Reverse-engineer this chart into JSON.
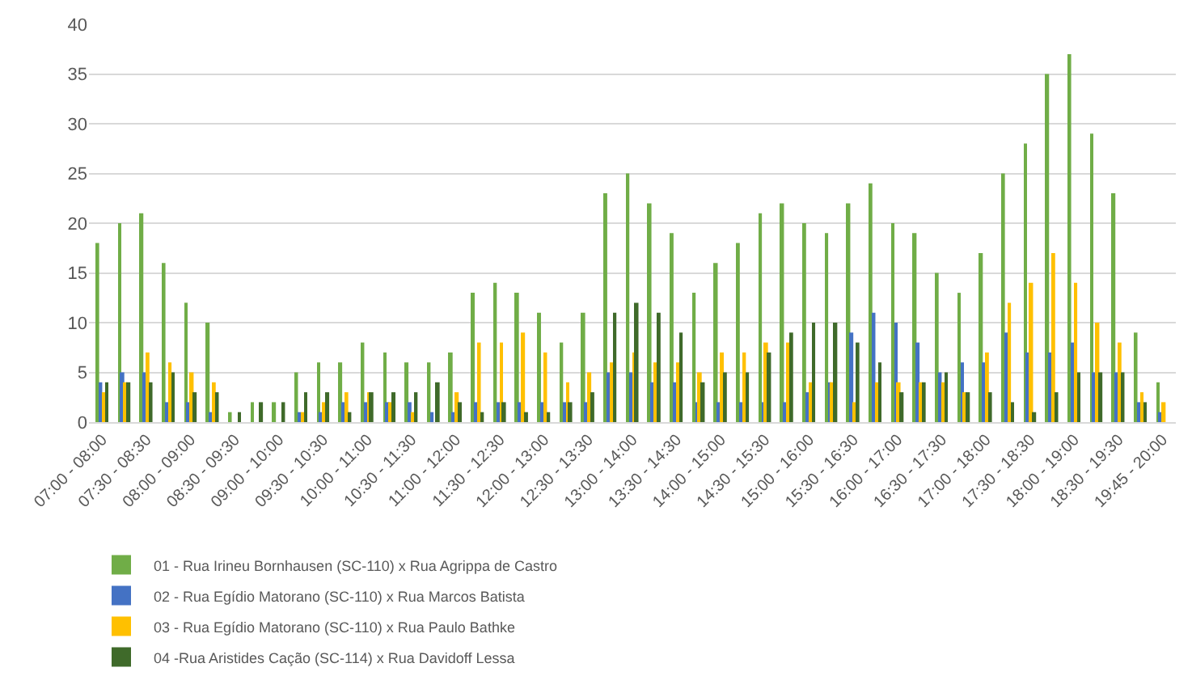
{
  "chart_data": {
    "type": "bar",
    "categories": [
      "07:00 - 08:00",
      null,
      "07:30 - 08:30",
      null,
      "08:00 - 09:00",
      null,
      "08:30 - 09:30",
      null,
      "09:00 - 10:00",
      null,
      "09:30 - 10:30",
      null,
      "10:00 - 11:00",
      null,
      "10:30 - 11:30",
      null,
      "11:00 - 12:00",
      null,
      "11:30 - 12:30",
      null,
      "12:00 - 13:00",
      null,
      "12:30 - 13:30",
      null,
      "13:00 - 14:00",
      null,
      "13:30 - 14:30",
      null,
      "14:00 - 15:00",
      null,
      "14:30 - 15:30",
      null,
      "15:00 - 16:00",
      null,
      "15:30 - 16:30",
      null,
      "16:00 - 17:00",
      null,
      "16:30 - 17:30",
      null,
      "17:00 - 18:00",
      null,
      "17:30 - 18:30",
      null,
      "18:00 - 19:00",
      null,
      "18:30 - 19:30",
      null,
      "19:45 - 20:00"
    ],
    "series": [
      {
        "name": "01 - Rua Irineu Bornhausen (SC-110) x Rua Agrippa de Castro",
        "color": "#70ad47",
        "values": [
          18,
          20,
          21,
          16,
          12,
          10,
          1,
          2,
          2,
          5,
          6,
          6,
          8,
          7,
          6,
          6,
          7,
          13,
          14,
          13,
          11,
          8,
          11,
          23,
          25,
          22,
          19,
          13,
          16,
          18,
          21,
          22,
          20,
          19,
          22,
          24,
          20,
          19,
          15,
          13,
          17,
          25,
          28,
          35,
          37,
          29,
          23,
          9,
          4
        ]
      },
      {
        "name": "02 - Rua Egídio Matorano (SC-110) x Rua Marcos Batista",
        "color": "#4472c4",
        "values": [
          4,
          5,
          5,
          2,
          2,
          1,
          0,
          0,
          0,
          1,
          1,
          2,
          2,
          2,
          2,
          1,
          1,
          2,
          2,
          2,
          2,
          2,
          2,
          5,
          5,
          4,
          4,
          2,
          2,
          2,
          2,
          2,
          3,
          4,
          9,
          11,
          10,
          8,
          5,
          6,
          6,
          9,
          7,
          7,
          8,
          5,
          5,
          2,
          1
        ]
      },
      {
        "name": "03 - Rua Egídio Matorano (SC-110) x Rua Paulo Bathke",
        "color": "#ffc000",
        "values": [
          3,
          4,
          7,
          6,
          5,
          4,
          0,
          0,
          0,
          1,
          2,
          3,
          3,
          2,
          1,
          0,
          3,
          8,
          8,
          9,
          7,
          4,
          5,
          6,
          7,
          6,
          6,
          5,
          7,
          7,
          8,
          8,
          4,
          4,
          2,
          4,
          4,
          4,
          4,
          3,
          7,
          12,
          14,
          17,
          14,
          10,
          8,
          3,
          2
        ]
      },
      {
        "name": "04 -Rua Aristides Cação (SC-114) x Rua Davidoff Lessa",
        "color": "#3f6a2a",
        "values": [
          4,
          4,
          4,
          5,
          3,
          3,
          1,
          2,
          2,
          3,
          3,
          1,
          3,
          3,
          3,
          4,
          2,
          1,
          2,
          1,
          1,
          2,
          3,
          11,
          12,
          11,
          9,
          4,
          5,
          5,
          7,
          9,
          10,
          10,
          8,
          6,
          3,
          4,
          5,
          3,
          3,
          2,
          1,
          3,
          5,
          5,
          5,
          2,
          0
        ]
      }
    ],
    "ylim": [
      0,
      40
    ],
    "yticks": [
      0,
      5,
      10,
      15,
      20,
      25,
      30,
      35,
      40
    ],
    "grid": "y",
    "legend": "bottom"
  }
}
